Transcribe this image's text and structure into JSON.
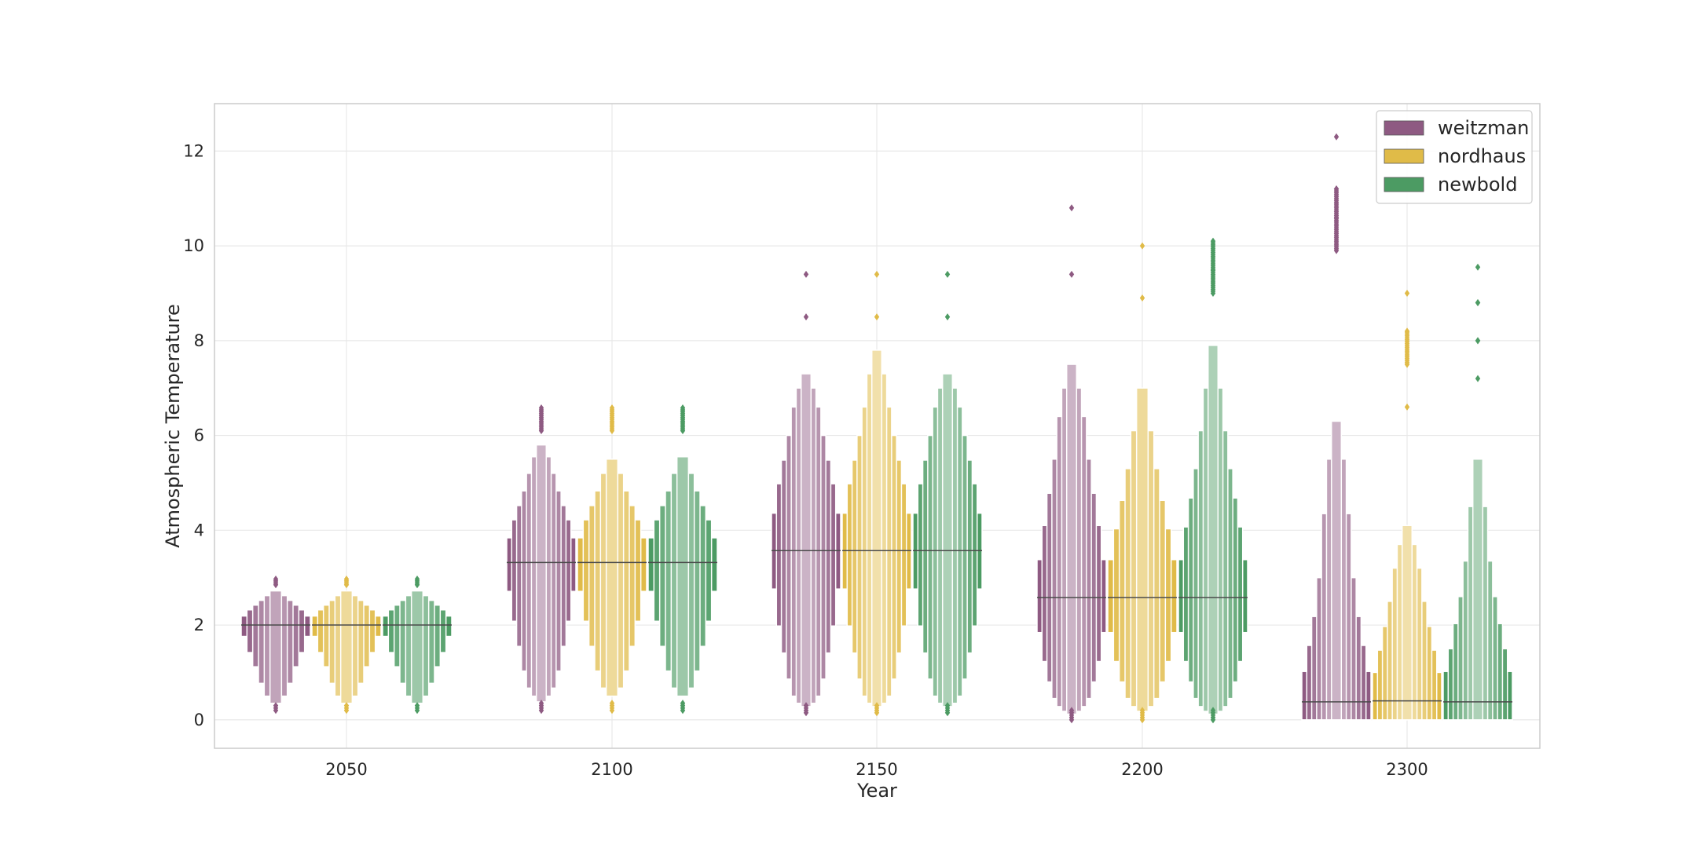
{
  "chart_data": {
    "type": "boxen",
    "xlabel": "Year",
    "ylabel": "Atmospheric Temperature",
    "categories": [
      "2050",
      "2100",
      "2150",
      "2200",
      "2300"
    ],
    "y_ticks": [
      0,
      2,
      4,
      6,
      8,
      10,
      12
    ],
    "ylim": [
      -0.6,
      13.0
    ],
    "grid": true,
    "legend_position": "top-right",
    "series": [
      {
        "name": "weitzman",
        "color": "#8e5a82",
        "groups": [
          {
            "median": 2.0,
            "letter_values": [
              [
                1.76,
                2.19
              ],
              [
                1.42,
                2.32
              ],
              [
                1.12,
                2.42
              ],
              [
                0.77,
                2.52
              ],
              [
                0.5,
                2.62
              ],
              [
                0.35,
                2.72
              ]
            ],
            "outliers_low": [
              0.2,
              0.3
            ],
            "outliers_high": [
              2.85,
              3.0
            ]
          },
          {
            "median": 3.32,
            "letter_values": [
              [
                2.71,
                3.84
              ],
              [
                2.08,
                4.22
              ],
              [
                1.55,
                4.52
              ],
              [
                1.03,
                4.83
              ],
              [
                0.67,
                5.2
              ],
              [
                0.5,
                5.55
              ],
              [
                0.38,
                5.8
              ]
            ],
            "outliers_low": [
              0.2,
              0.35
            ],
            "outliers_high": [
              6.1,
              6.6
            ]
          },
          {
            "median": 3.57,
            "letter_values": [
              [
                2.76,
                4.36
              ],
              [
                1.98,
                4.98
              ],
              [
                1.41,
                5.48
              ],
              [
                0.86,
                6.0
              ],
              [
                0.5,
                6.6
              ],
              [
                0.35,
                7.0
              ],
              [
                0.28,
                7.3
              ]
            ],
            "outliers_low": [
              0.15,
              0.3
            ],
            "outliers_high": [
              8.5,
              9.4
            ]
          },
          {
            "median": 2.58,
            "letter_values": [
              [
                1.84,
                3.38
              ],
              [
                1.23,
                4.1
              ],
              [
                0.8,
                4.78
              ],
              [
                0.45,
                5.5
              ],
              [
                0.28,
                6.4
              ],
              [
                0.18,
                7.0
              ],
              [
                0.12,
                7.5
              ]
            ],
            "outliers_low": [
              0.0,
              0.2
            ],
            "outliers_high": [
              9.4,
              10.8
            ]
          },
          {
            "median": 0.38,
            "letter_values": [
              [
                0.0,
                1.02
              ],
              [
                0.0,
                1.57
              ],
              [
                0.0,
                2.18
              ],
              [
                0.0,
                3.0
              ],
              [
                0.0,
                4.35
              ],
              [
                0.0,
                5.5
              ],
              [
                0.0,
                6.3
              ]
            ],
            "outliers_low": [],
            "outliers_high": [
              9.9,
              10.6,
              11.2,
              12.3
            ]
          }
        ]
      },
      {
        "name": "nordhaus",
        "color": "#e0bb48",
        "groups": [
          {
            "median": 2.0,
            "letter_values": [
              [
                1.76,
                2.19
              ],
              [
                1.42,
                2.32
              ],
              [
                1.12,
                2.42
              ],
              [
                0.77,
                2.52
              ],
              [
                0.5,
                2.62
              ],
              [
                0.35,
                2.72
              ]
            ],
            "outliers_low": [
              0.2,
              0.3
            ],
            "outliers_high": [
              2.85,
              3.0
            ]
          },
          {
            "median": 3.32,
            "letter_values": [
              [
                2.71,
                3.84
              ],
              [
                2.08,
                4.22
              ],
              [
                1.55,
                4.52
              ],
              [
                1.03,
                4.83
              ],
              [
                0.67,
                5.2
              ],
              [
                0.5,
                5.5
              ]
            ],
            "outliers_low": [
              0.2,
              0.35
            ],
            "outliers_high": [
              6.1,
              6.6
            ]
          },
          {
            "median": 3.57,
            "letter_values": [
              [
                2.76,
                4.36
              ],
              [
                1.98,
                4.98
              ],
              [
                1.41,
                5.48
              ],
              [
                0.86,
                6.0
              ],
              [
                0.5,
                6.6
              ],
              [
                0.35,
                7.3
              ],
              [
                0.28,
                7.8
              ]
            ],
            "outliers_low": [
              0.15,
              0.3
            ],
            "outliers_high": [
              8.5,
              9.4
            ]
          },
          {
            "median": 2.58,
            "letter_values": [
              [
                1.84,
                3.38
              ],
              [
                1.23,
                4.03
              ],
              [
                0.8,
                4.63
              ],
              [
                0.45,
                5.3
              ],
              [
                0.28,
                6.1
              ],
              [
                0.18,
                7.0
              ]
            ],
            "outliers_low": [
              0.0,
              0.2
            ],
            "outliers_high": [
              8.9,
              10.0
            ]
          },
          {
            "median": 0.4,
            "letter_values": [
              [
                0.0,
                1.0
              ],
              [
                0.0,
                1.47
              ],
              [
                0.0,
                1.97
              ],
              [
                0.0,
                2.5
              ],
              [
                0.0,
                3.2
              ],
              [
                0.0,
                3.7
              ],
              [
                0.0,
                4.1
              ]
            ],
            "outliers_low": [],
            "outliers_high": [
              6.6,
              7.5,
              8.2,
              9.0
            ]
          }
        ]
      },
      {
        "name": "newbold",
        "color": "#4c9b63",
        "groups": [
          {
            "median": 2.0,
            "letter_values": [
              [
                1.76,
                2.19
              ],
              [
                1.42,
                2.32
              ],
              [
                1.12,
                2.42
              ],
              [
                0.77,
                2.52
              ],
              [
                0.5,
                2.62
              ],
              [
                0.35,
                2.72
              ]
            ],
            "outliers_low": [
              0.2,
              0.3
            ],
            "outliers_high": [
              2.85,
              3.0
            ]
          },
          {
            "median": 3.32,
            "letter_values": [
              [
                2.71,
                3.84
              ],
              [
                2.08,
                4.22
              ],
              [
                1.55,
                4.52
              ],
              [
                1.03,
                4.83
              ],
              [
                0.67,
                5.2
              ],
              [
                0.5,
                5.55
              ]
            ],
            "outliers_low": [
              0.2,
              0.35
            ],
            "outliers_high": [
              6.1,
              6.6
            ]
          },
          {
            "median": 3.57,
            "letter_values": [
              [
                2.76,
                4.36
              ],
              [
                1.98,
                4.98
              ],
              [
                1.41,
                5.48
              ],
              [
                0.86,
                6.0
              ],
              [
                0.5,
                6.6
              ],
              [
                0.35,
                7.0
              ],
              [
                0.28,
                7.3
              ]
            ],
            "outliers_low": [
              0.15,
              0.3
            ],
            "outliers_high": [
              8.5,
              9.4
            ]
          },
          {
            "median": 2.58,
            "letter_values": [
              [
                1.84,
                3.38
              ],
              [
                1.23,
                4.07
              ],
              [
                0.8,
                4.68
              ],
              [
                0.45,
                5.3
              ],
              [
                0.28,
                6.1
              ],
              [
                0.18,
                7.0
              ],
              [
                0.12,
                7.9
              ]
            ],
            "outliers_low": [
              0.0,
              0.2
            ],
            "outliers_high": [
              9.0,
              9.5,
              10.1
            ]
          },
          {
            "median": 0.38,
            "letter_values": [
              [
                0.0,
                1.02
              ],
              [
                0.0,
                1.5
              ],
              [
                0.0,
                2.03
              ],
              [
                0.0,
                2.6
              ],
              [
                0.0,
                3.35
              ],
              [
                0.0,
                4.5
              ],
              [
                0.0,
                5.5
              ]
            ],
            "outliers_low": [],
            "outliers_high": [
              7.2,
              8.0,
              8.8,
              9.55
            ]
          }
        ]
      }
    ]
  }
}
